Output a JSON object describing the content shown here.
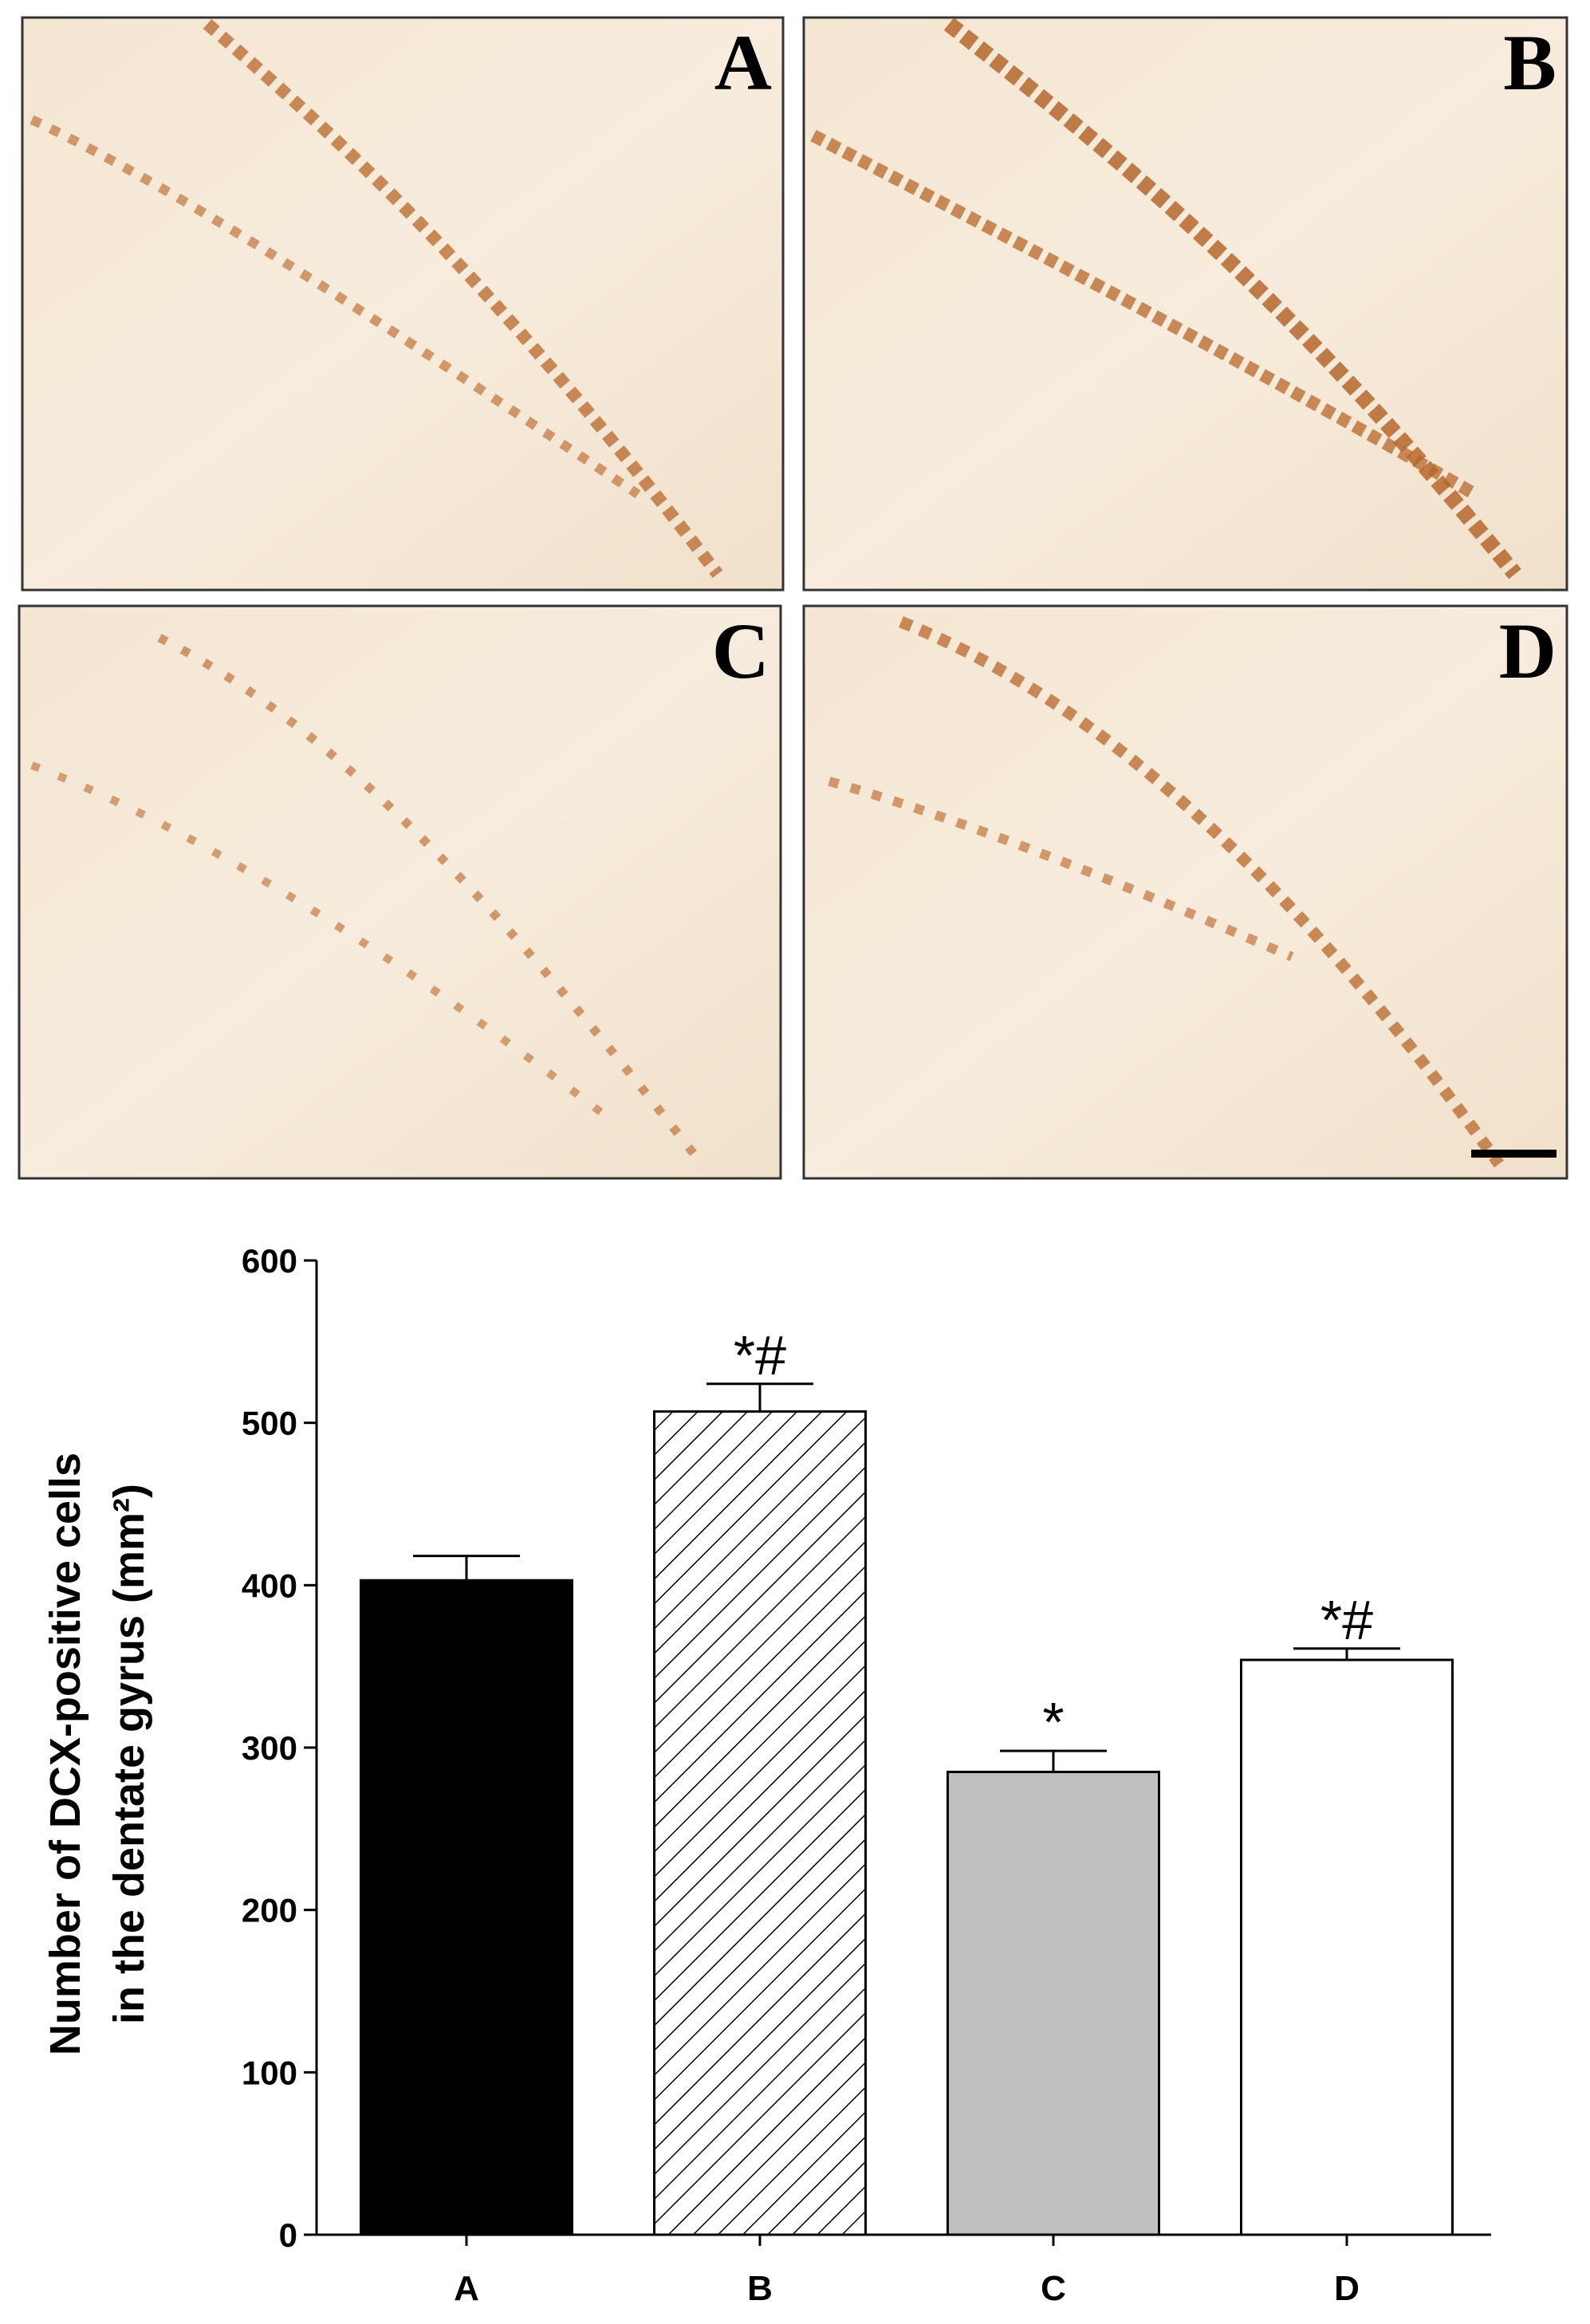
{
  "panels": [
    {
      "label": "A"
    },
    {
      "label": "B"
    },
    {
      "label": "C"
    },
    {
      "label": "D"
    }
  ],
  "chart_data": {
    "type": "bar",
    "ylabel": [
      "Number of DCX-positive cells",
      "in the dentate gyrus (mm²)"
    ],
    "categories": [
      "A",
      "B",
      "C",
      "D"
    ],
    "values": [
      403,
      507,
      285,
      354
    ],
    "errors": [
      15,
      17,
      13,
      7
    ],
    "annotations": [
      null,
      "*#",
      "*",
      "*#"
    ],
    "colors": [
      "#000000",
      "#ffffff",
      "#c0c0c0",
      "#ffffff"
    ],
    "hatch": [
      false,
      true,
      false,
      false
    ],
    "ylim": [
      0,
      600
    ],
    "yticks": [
      0,
      100,
      200,
      300,
      400,
      500,
      600
    ]
  }
}
